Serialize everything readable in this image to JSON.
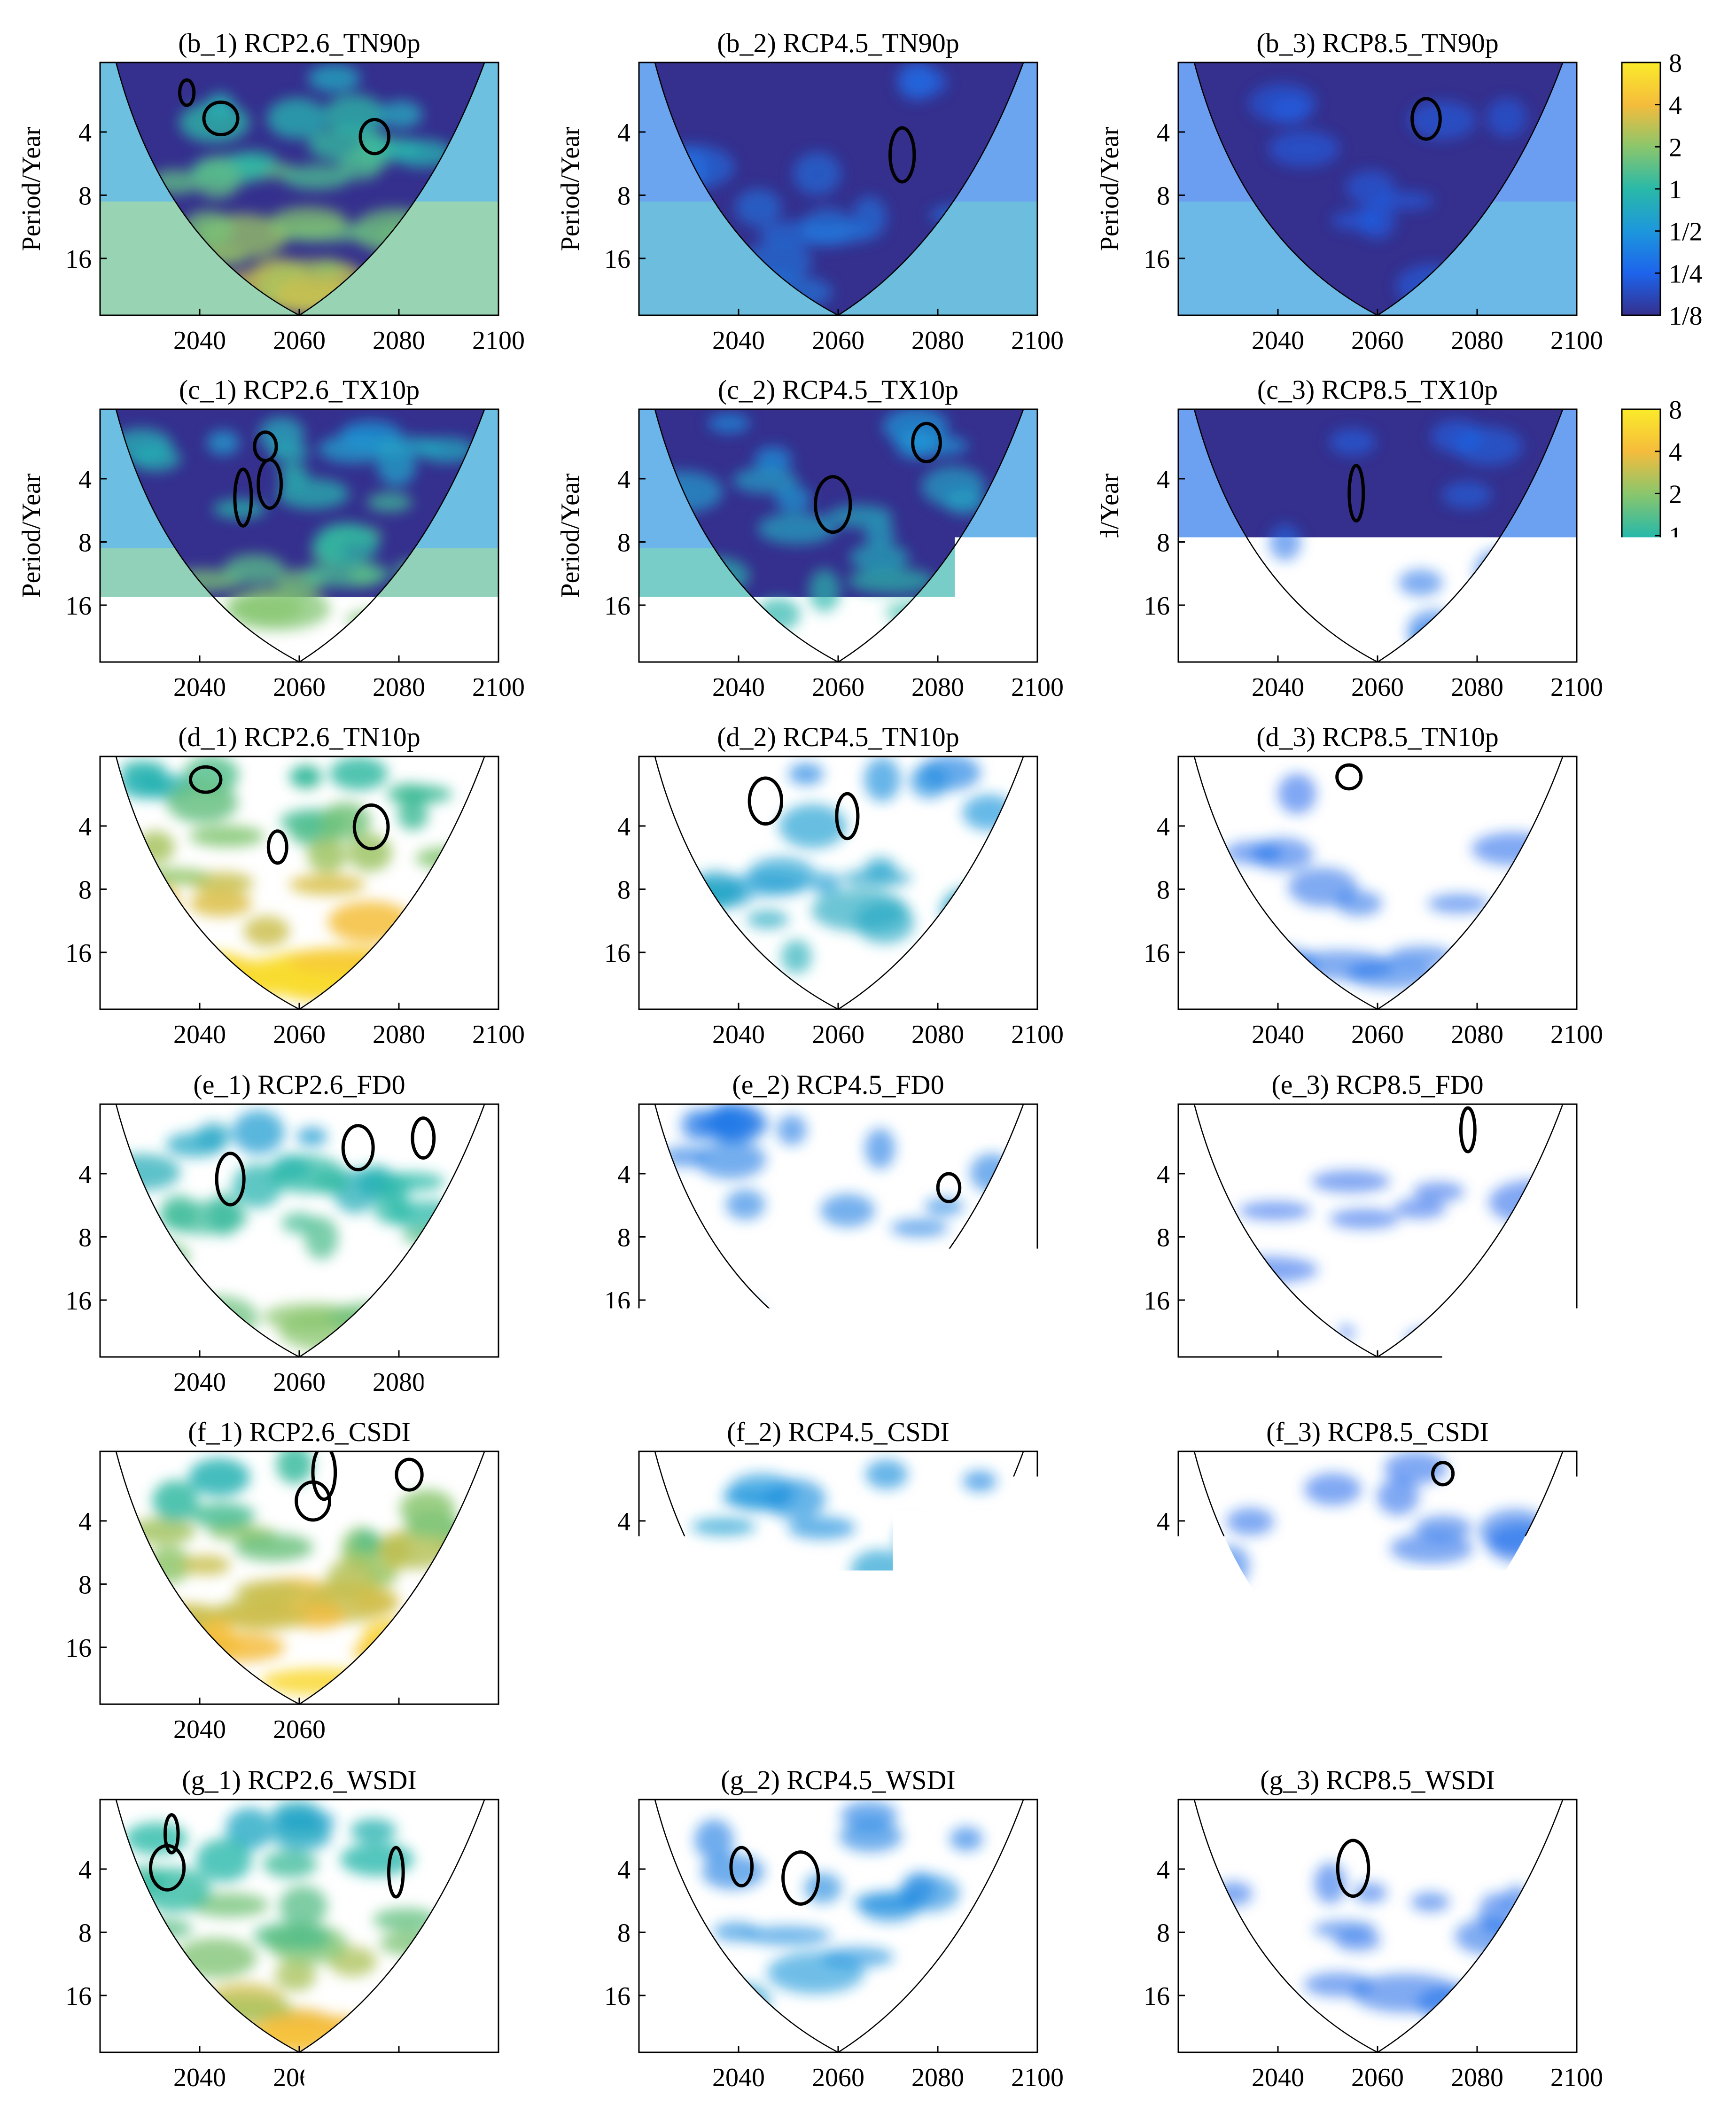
{
  "chart_data": {
    "type": "heatmap",
    "description_type": "wavelet power spectrum grid",
    "x_ticks": [
      "2040",
      "2060",
      "2080",
      "2100"
    ],
    "x_tick_values": [
      2040,
      2060,
      2080,
      2100
    ],
    "x_range": [
      2020,
      2100
    ],
    "y_label": "Period/Year",
    "y_ticks": [
      "4",
      "8",
      "16"
    ],
    "y_tick_values": [
      4,
      8,
      16
    ],
    "y_range_log2": [
      0.9,
      4.9
    ],
    "colorbar": {
      "tick_labels": [
        "8",
        "4",
        "2",
        "1",
        "1/2",
        "1/4",
        "1/8"
      ],
      "tick_values": [
        8,
        4,
        2,
        1,
        0.5,
        0.25,
        0.125
      ],
      "colors": [
        "#fbeb2a",
        "#f5bc3c",
        "#8bc66c",
        "#29b9a8",
        "#1d97dc",
        "#1d64ec",
        "#35308e"
      ]
    },
    "cone_of_influence": {
      "apex_year": 2060
    },
    "rows": [
      {
        "row_label": "b",
        "index": "TN90p",
        "panels": [
          {
            "title": "(b_1) RCP2.6_TN90p",
            "scenario": "RCP2.6",
            "intensity": 0.55
          },
          {
            "title": "(b_2) RCP4.5_TN90p",
            "scenario": "RCP4.5",
            "intensity": 0.1
          },
          {
            "title": "(b_3) RCP8.5_TN90p",
            "scenario": "RCP8.5",
            "intensity": 0.02
          }
        ]
      },
      {
        "row_label": "c",
        "index": "TX10p",
        "panels": [
          {
            "title": "(c_1) RCP2.6_TX10p",
            "scenario": "RCP2.6",
            "intensity": 0.5
          },
          {
            "title": "(c_2) RCP4.5_TX10p",
            "scenario": "RCP4.5",
            "intensity": 0.35
          },
          {
            "title": "(c_3) RCP8.5_TX10p",
            "scenario": "RCP8.5",
            "intensity": 0.06
          }
        ]
      },
      {
        "row_label": "d",
        "index": "TN10p",
        "panels": [
          {
            "title": "(d_1) RCP2.6_TN10p",
            "scenario": "RCP2.6",
            "intensity": 0.75
          },
          {
            "title": "(d_2) RCP4.5_TN10p",
            "scenario": "RCP4.5",
            "intensity": 0.3
          },
          {
            "title": "(d_3) RCP8.5_TN10p",
            "scenario": "RCP8.5",
            "intensity": 0.05
          }
        ]
      },
      {
        "row_label": "e",
        "index": "FD0",
        "panels": [
          {
            "title": "(e_1) RCP2.6_FD0",
            "scenario": "RCP2.6",
            "intensity": 0.5
          },
          {
            "title": "(e_2) RCP4.5_FD0",
            "scenario": "RCP4.5",
            "intensity": 0.15
          },
          {
            "title": "(e_3) RCP8.5_FD0",
            "scenario": "RCP8.5",
            "intensity": 0.02
          }
        ]
      },
      {
        "row_label": "f",
        "index": "CSDI",
        "panels": [
          {
            "title": "(f_1) RCP2.6_CSDI",
            "scenario": "RCP2.6",
            "intensity": 0.75
          },
          {
            "title": "(f_2) RCP4.5_CSDI",
            "scenario": "RCP4.5",
            "intensity": 0.3
          },
          {
            "title": "(f_3) RCP8.5_CSDI",
            "scenario": "RCP8.5",
            "intensity": 0.06
          }
        ]
      },
      {
        "row_label": "g",
        "index": "WSDI",
        "panels": [
          {
            "title": "(g_1) RCP2.6_WSDI",
            "scenario": "RCP2.6",
            "intensity": 0.6
          },
          {
            "title": "(g_2) RCP4.5_WSDI",
            "scenario": "RCP4.5",
            "intensity": 0.2
          },
          {
            "title": "(g_3) RCP8.5_WSDI",
            "scenario": "RCP8.5",
            "intensity": 0.05
          }
        ]
      }
    ]
  }
}
